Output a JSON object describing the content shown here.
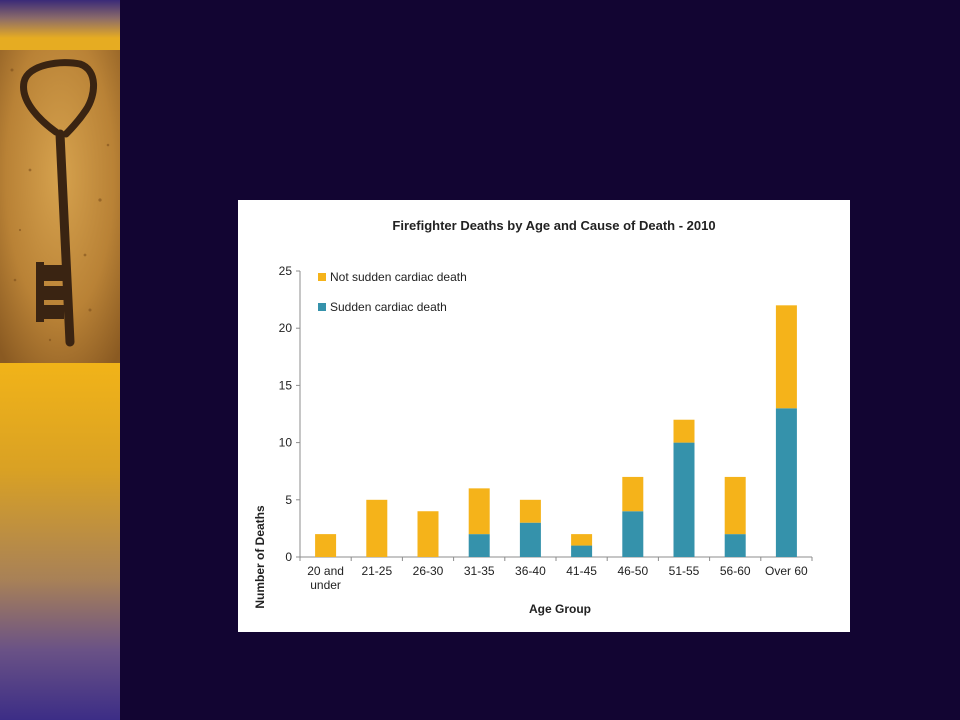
{
  "slide": {
    "background_color": "#120532",
    "left_band_image": "rusty-skeleton-key-on-sand"
  },
  "chart_data": {
    "type": "bar",
    "stacked": true,
    "title": "Firefighter Deaths by Age and Cause of Death - 2010",
    "xlabel": "Age Group",
    "ylabel": "Number of Deaths",
    "ylim": [
      0,
      25
    ],
    "yticks": [
      0,
      5,
      10,
      15,
      20,
      25
    ],
    "grid": false,
    "legend_position": "top-left",
    "categories": [
      [
        "20 and",
        "under"
      ],
      [
        "21-25"
      ],
      [
        "26-30"
      ],
      [
        "31-35"
      ],
      [
        "36-40"
      ],
      [
        "41-45"
      ],
      [
        "46-50"
      ],
      [
        "51-55"
      ],
      [
        "56-60"
      ],
      [
        "Over 60"
      ]
    ],
    "series": [
      {
        "name": "Sudden cardiac death",
        "color": "#3592ab",
        "values": [
          0,
          0,
          0,
          2,
          3,
          1,
          4,
          10,
          2,
          13
        ]
      },
      {
        "name": "Not sudden cardiac death",
        "color": "#f5b31a",
        "values": [
          2,
          5,
          4,
          4,
          2,
          1,
          3,
          2,
          5,
          9
        ]
      }
    ],
    "legend_order": [
      "Not sudden cardiac death",
      "Sudden cardiac death"
    ]
  }
}
